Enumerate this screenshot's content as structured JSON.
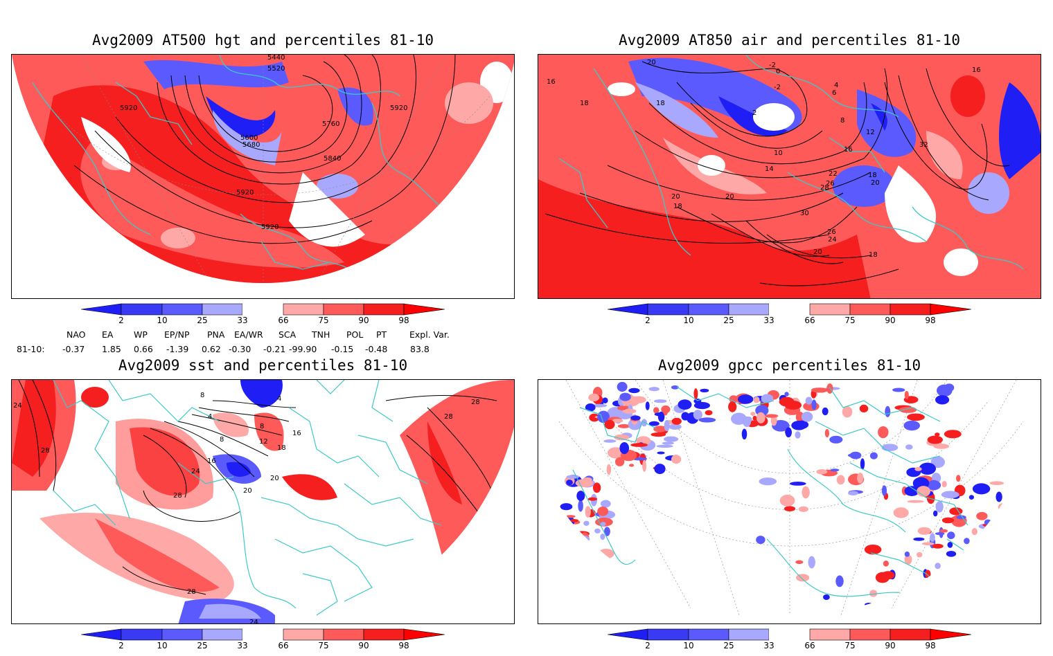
{
  "colors": {
    "dark_blue": "#1f1ff5",
    "mid_blue": "#5a5aff",
    "light_blue": "#a8a8ff",
    "light_red": "#ffa8a8",
    "mid_red": "#ff5a5a",
    "dark_red": "#f51f1f",
    "vivid_red": "#ff0000",
    "coast": "#3ec8c8",
    "contour": "#000000"
  },
  "panels": [
    {
      "title": "Avg2009 AT500 hgt and percentiles 81-10",
      "contour_labels": [
        "5440",
        "5520",
        "5920",
        "5600",
        "5680",
        "5760",
        "5840",
        "5920",
        "5920",
        "5920"
      ]
    },
    {
      "title": "Avg2009 AT850 air and percentiles 81-10",
      "contour_labels": [
        "20",
        "-2",
        "0",
        "-2",
        "4",
        "6",
        "16",
        "18",
        "18",
        "2",
        "8",
        "10",
        "12",
        "14",
        "16",
        "18",
        "20",
        "22",
        "26",
        "28",
        "30",
        "32",
        "26",
        "24",
        "20",
        "18",
        "16",
        "20",
        "20",
        "18"
      ]
    },
    {
      "title": "Avg2009 sst and percentiles 81-10",
      "contour_labels": [
        "24",
        "28",
        "28",
        "8",
        "4",
        "8",
        "12",
        "16",
        "20",
        "24",
        "28",
        "20",
        "28",
        "28",
        "24",
        "4",
        "8",
        "16",
        "18"
      ]
    },
    {
      "title": "Avg2009 gpcc percentiles 81-10",
      "contour_labels": []
    }
  ],
  "colorbar": {
    "labels": [
      "2",
      "10",
      "25",
      "33",
      "66",
      "75",
      "90",
      "98"
    ]
  },
  "indices": {
    "headers": [
      "NAO",
      "EA",
      "WP",
      "EP/NP",
      "PNA",
      "EA/WR",
      "SCA",
      "TNH",
      "POL",
      "PT",
      "Expl. Var."
    ],
    "row_label": "81-10:",
    "values": [
      "-0.37",
      "1.85",
      "0.66",
      "-1.39",
      "0.62",
      "-0.30",
      "-0.21",
      "-99.90",
      "-0.15",
      "-0.48",
      "83.8"
    ]
  }
}
